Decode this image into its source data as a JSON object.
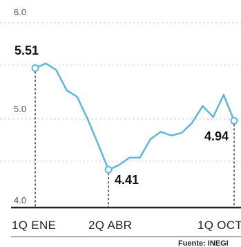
{
  "chart_data": {
    "type": "line",
    "title": "",
    "xlabel": "",
    "ylabel": "",
    "ylim": [
      4.0,
      6.0
    ],
    "yticks": [
      "6.0",
      "5.0",
      "4.0"
    ],
    "xticks": [
      "1Q ENE",
      "2Q ABR",
      "1Q OCT"
    ],
    "grid": true,
    "series": [
      {
        "values": [
          5.51,
          5.56,
          5.49,
          5.27,
          5.2,
          4.96,
          4.69,
          4.41,
          4.46,
          4.54,
          4.54,
          4.74,
          4.82,
          4.78,
          4.81,
          4.92,
          5.1,
          4.98,
          5.22,
          4.94
        ],
        "color": "#5fb6d8"
      }
    ],
    "annotations": [
      {
        "index": 0,
        "label": "5.51"
      },
      {
        "index": 7,
        "label": "4.41"
      },
      {
        "index": 19,
        "label": "4.94"
      }
    ],
    "source": "Fuente: INEGI"
  }
}
